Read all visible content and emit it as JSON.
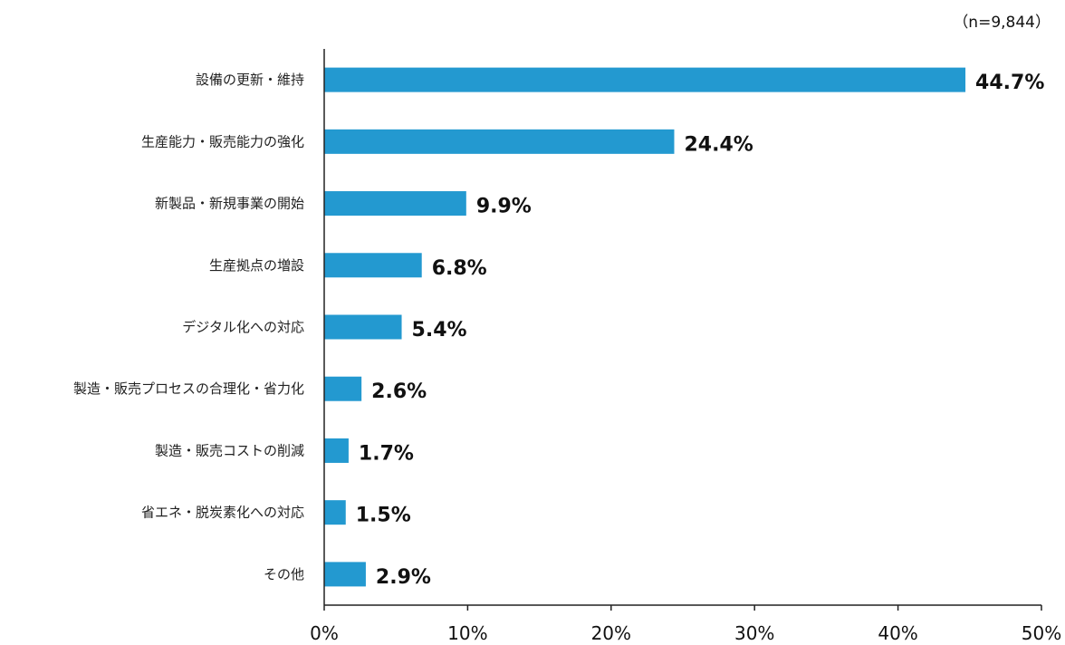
{
  "chart_data": {
    "type": "bar",
    "orientation": "horizontal",
    "note": "（n=9,844）",
    "categories": [
      "設備の更新・維持",
      "生産能力・販売能力の強化",
      "新製品・新規事業の開始",
      "生産拠点の増設",
      "デジタル化への対応",
      "製造・販売プロセスの合理化・省力化",
      "製造・販売コストの削減",
      "省エネ・脱炭素化への対応",
      "その他"
    ],
    "values": [
      44.7,
      24.4,
      9.9,
      6.8,
      5.4,
      2.6,
      1.7,
      1.5,
      2.9
    ],
    "data_labels": [
      "44.7%",
      "24.4%",
      "9.9%",
      "6.8%",
      "5.4%",
      "2.6%",
      "1.7%",
      "1.5%",
      "2.9%"
    ],
    "xlim": [
      0,
      50
    ],
    "xticks": [
      0,
      10,
      20,
      30,
      40,
      50
    ],
    "xtick_labels": [
      "0%",
      "10%",
      "20%",
      "30%",
      "40%",
      "50%"
    ],
    "grid": false,
    "legend": "none",
    "bar_color": "#2399D0"
  }
}
